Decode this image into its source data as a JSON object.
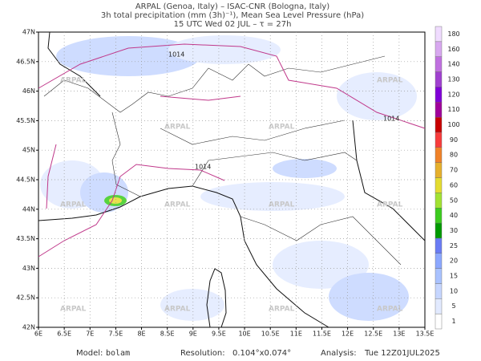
{
  "header": {
    "line1": "ARPAL (Genoa, Italy)  –  ISAC-CNR (Bologna, Italy)",
    "line2": "3h total precipitation (mm (3h)⁻¹), Mean Sea Level Pressure (hPa)",
    "line3": "15 UTC Wed 02 JUL  –  τ = 27h"
  },
  "map": {
    "lon_ticks": [
      "6E",
      "6.5E",
      "7E",
      "7.5E",
      "8E",
      "8.5E",
      "9E",
      "9.5E",
      "10E",
      "10.5E",
      "11E",
      "11.5E",
      "12E",
      "12.5E",
      "13E",
      "13.5E"
    ],
    "lat_ticks": [
      "42N",
      "42.5N",
      "43N",
      "43.5N",
      "44N",
      "44.5N",
      "45N",
      "45.5N",
      "46N",
      "46.5N",
      "47N"
    ],
    "isobar_label": "1014",
    "watermark": "ARPAL"
  },
  "colorbar": {
    "levels": [
      1,
      5,
      10,
      15,
      20,
      25,
      30,
      40,
      50,
      60,
      70,
      80,
      90,
      100,
      110,
      120,
      130,
      140,
      160,
      180
    ],
    "colors": [
      "#ffffff",
      "#e2eaff",
      "#c6d6ff",
      "#a9c2ff",
      "#8ca8ff",
      "#6a7cf5",
      "#009a00",
      "#3ccc1e",
      "#a2e232",
      "#e4dc30",
      "#e6b02c",
      "#f08228",
      "#f83c3c",
      "#c80000",
      "#a0009a",
      "#8000d8",
      "#a040d0",
      "#c070e0",
      "#d8a8f0",
      "#f0dcff"
    ]
  },
  "footer": {
    "model_label": "Model:",
    "model": "bolam",
    "resolution_label": "Resolution:",
    "resolution": "0.104°x0.074°",
    "analysis_label": "Analysis:",
    "analysis": "Tue 12Z01JUL2025"
  }
}
